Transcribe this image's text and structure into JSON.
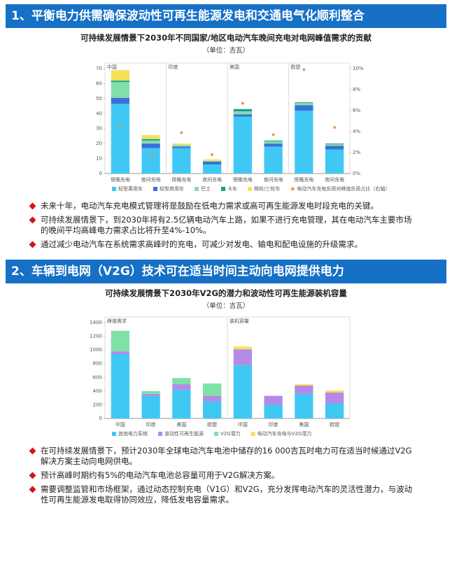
{
  "sections": [
    {
      "heading": "1、平衡电力供需确保波动性可再生能源发电和交通电气化顺利整合",
      "chart_data": {
        "type": "bar",
        "stacked": true,
        "title": "可持续发展情景下2030年不同国家/地区电动汽车晚间充电对电网峰值需求的贡献",
        "subtitle": "（单位：吉瓦）",
        "categories": [
          "傍晚充电",
          "夜间充电",
          "傍晚充电",
          "夜间充电",
          "傍晚充电",
          "夜间充电",
          "傍晚充电",
          "夜间充电"
        ],
        "group_labels": [
          "中国",
          null,
          "印度",
          null,
          "美国",
          null,
          "欧盟",
          null
        ],
        "series": [
          {
            "name": "轻型乘用车",
            "color": "#3fc8f4",
            "values": [
              46.5,
              17,
              17,
              6,
              38,
              18,
              42,
              16
            ]
          },
          {
            "name": "轻型商用车",
            "color": "#3a6fd8",
            "values": [
              4,
              3,
              1,
              2,
              1.5,
              2,
              3.5,
              2.5
            ]
          },
          {
            "name": "巴士",
            "color": "#7fe0a8",
            "values": [
              10.5,
              2,
              1,
              0.5,
              2,
              1.5,
              1.5,
              1
            ]
          },
          {
            "name": "卡车",
            "color": "#1a9e8c",
            "values": [
              1,
              1,
              0,
              0,
              1.5,
              0.5,
              0.5,
              0.5
            ]
          },
          {
            "name": "两轮/三轮车",
            "color": "#f6e05a",
            "values": [
              7,
              2.6,
              1,
              1,
              0,
              0,
              0,
              0
            ]
          },
          {
            "name": "电动汽车充电负荷对峰值负荷占比（右轴）",
            "type": "scatter",
            "axis": "y2",
            "color": "#e0a050",
            "values": [
              4.4,
              1.8,
              3.9,
              1.8,
              6.7,
              3.7,
              9.9,
              4.4
            ]
          }
        ],
        "ylim": [
          0,
          70
        ],
        "yticks": [
          0,
          10,
          20,
          30,
          40,
          50,
          60,
          70
        ],
        "y2lim": [
          0,
          10
        ],
        "y2ticks": [
          {
            "value": 0,
            "label": "0%"
          },
          {
            "value": 2,
            "label": "2%"
          },
          {
            "value": 4,
            "label": "4%"
          },
          {
            "value": 6,
            "label": "6%"
          },
          {
            "value": 8,
            "label": "8%"
          },
          {
            "value": 10,
            "label": "10%"
          }
        ]
      },
      "bullets": [
        "未来十年，电动汽车充电模式管理将是鼓励在低电力需求或高可再生能源发电时段充电的关键。",
        "可持续发展情景下，到2030年将有2.5亿辆电动汽车上路，如果不进行充电管理，其在电动汽车主要市场的晚间平均高峰电力需求占比将升至4%-10%。",
        "通过减少电动汽车在系统需求高峰时的充电，可减少对发电、输电和配电设施的升级需求。"
      ]
    },
    {
      "heading": "2、车辆到电网（V2G）技术可在适当时间主动向电网提供电力",
      "chart_data": {
        "type": "bar",
        "stacked": true,
        "title": "可持续发展情景下2030年V2G的潜力和波动性可再生能源装机容量",
        "subtitle": "（单位：吉瓦）",
        "categories": [
          "中国",
          "印度",
          "美国",
          "欧盟",
          "中国",
          "印度",
          "美国",
          "欧盟"
        ],
        "group_labels": [
          "峰值需求",
          null,
          null,
          null,
          "装机容量",
          null,
          null,
          null
        ],
        "series": [
          {
            "name": "其他电力系统",
            "color": "#3fc8f4",
            "values": [
              940,
              330,
              420,
              250,
              780,
              200,
              360,
              220
            ]
          },
          {
            "name": "波动性可再生能源",
            "color": "#b48ae6",
            "values": [
              40,
              30,
              80,
              80,
              230,
              130,
              120,
              160
            ]
          },
          {
            "name": "V2G潜力",
            "color": "#7fe0a8",
            "values": [
              300,
              40,
              90,
              180,
              0,
              0,
              0,
              0
            ]
          },
          {
            "name": "电动汽车充电与V2G潜力",
            "color": "#f6e05a",
            "values": [
              0,
              0,
              0,
              0,
              40,
              0,
              20,
              30
            ]
          }
        ],
        "ylim": [
          0,
          1400
        ],
        "yticks": [
          0,
          200,
          400,
          600,
          800,
          1000,
          1200,
          1400
        ]
      },
      "bullets": [
        "在可持续发展情景下，预计2030年全球电动汽车电池中储存的16 000吉瓦时电力可在适当时候通过V2G解决方案主动向电网供电。",
        "预计高峰时期约有5%的电动汽车电池总容量可用于V2G解决方案。",
        "需要调整监管和市场框架，通过动态控制充电（V1G）和V2G，充分发挥电动汽车的灵活性潜力，与波动性可再生能源发电取得协同效应，降低发电容量需求。"
      ]
    }
  ]
}
